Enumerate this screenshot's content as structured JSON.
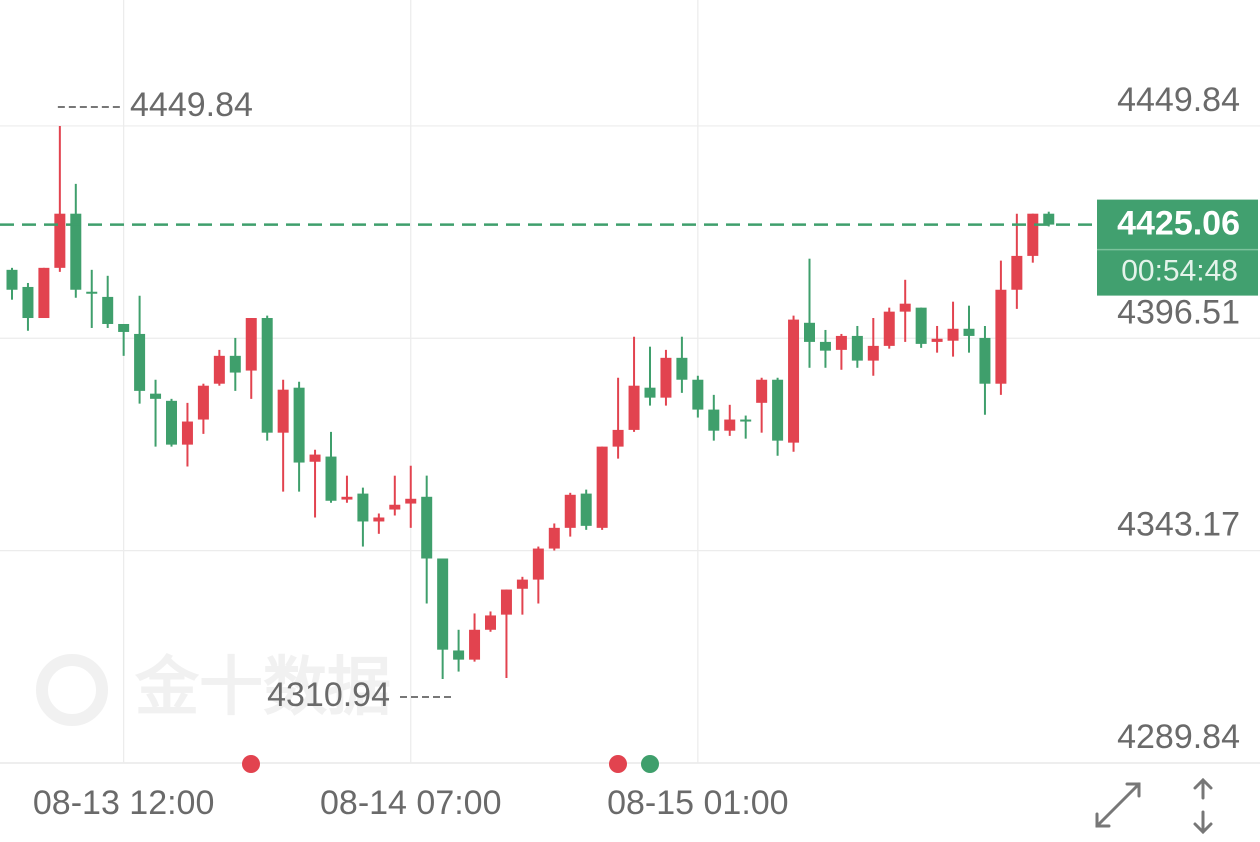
{
  "chart_data": {
    "type": "candlestick",
    "watermark": "金十数据",
    "categories": [
      null,
      null,
      null,
      null,
      null,
      null,
      null,
      "08-13 12:00",
      null,
      null,
      null,
      null,
      null,
      null,
      null,
      null,
      null,
      null,
      null,
      null,
      null,
      null,
      null,
      null,
      null,
      "08-14 07:00",
      null,
      null,
      null,
      null,
      null,
      null,
      null,
      null,
      null,
      null,
      null,
      null,
      null,
      null,
      null,
      null,
      null,
      "08-15 01:00",
      null,
      null,
      null,
      null,
      null,
      null,
      null,
      null,
      null,
      null,
      null,
      null,
      null,
      null,
      null,
      null,
      null,
      null,
      null,
      null,
      null,
      null
    ],
    "open": [
      4413.7,
      4409.4,
      4401.6,
      4414.2,
      4427.8,
      4408.2,
      4406.9,
      4400.1,
      4397.6,
      4382.6,
      4380.8,
      4369.8,
      4376.1,
      4385.1,
      4392.1,
      4388.4,
      4401.6,
      4372.8,
      4384.1,
      4365.5,
      4366.8,
      4356.0,
      4357.5,
      4350.5,
      4353.5,
      4355.0,
      4356.7,
      4341.2,
      4318.1,
      4315.8,
      4323.3,
      4327.1,
      4333.6,
      4335.9,
      4343.7,
      4348.9,
      4357.5,
      4348.9,
      4369.3,
      4373.5,
      4384.1,
      4381.6,
      4391.6,
      4386.1,
      4378.6,
      4373.3,
      4376.1,
      4380.3,
      4386.1,
      4370.3,
      4400.4,
      4395.6,
      4393.6,
      4397.1,
      4390.9,
      4394.6,
      4403.2,
      4404.2,
      4395.6,
      4395.9,
      4398.9,
      4396.6,
      4385.1,
      4408.7,
      4417.2,
      4427.8
    ],
    "high": [
      4414.2,
      4410.4,
      4414.2,
      4449.84,
      4435.3,
      4413.7,
      4412.2,
      4400.1,
      4407.2,
      4386.1,
      4381.3,
      4380.3,
      4385.1,
      4393.6,
      4396.6,
      4401.6,
      4402.2,
      4386.1,
      4385.6,
      4368.5,
      4373.0,
      4362.0,
      4359.0,
      4352.5,
      4362.0,
      4364.5,
      4362.0,
      4341.2,
      4323.3,
      4327.4,
      4327.9,
      4333.4,
      4336.6,
      4344.2,
      4350.0,
      4357.7,
      4358.5,
      4369.3,
      4386.6,
      4396.9,
      4394.4,
      4393.6,
      4396.9,
      4387.1,
      4382.3,
      4379.8,
      4377.1,
      4386.6,
      4386.6,
      4402.2,
      4416.5,
      4398.6,
      4397.6,
      4399.6,
      4401.6,
      4404.2,
      4411.2,
      4404.2,
      4399.6,
      4405.7,
      4404.7,
      4399.6,
      4416.0,
      4427.8,
      4427.8,
      4428.3
    ],
    "low": [
      4406.2,
      4398.4,
      4401.6,
      4413.2,
      4406.7,
      4399.1,
      4399.1,
      4392.1,
      4380.1,
      4369.3,
      4369.3,
      4364.3,
      4372.5,
      4384.6,
      4383.3,
      4381.3,
      4370.8,
      4358.0,
      4358.0,
      4351.5,
      4355.2,
      4355.2,
      4344.2,
      4347.4,
      4352.0,
      4348.9,
      4329.9,
      4310.94,
      4312.8,
      4315.3,
      4322.8,
      4311.2,
      4327.1,
      4329.9,
      4343.2,
      4346.7,
      4348.4,
      4348.4,
      4366.3,
      4373.0,
      4379.6,
      4379.6,
      4382.8,
      4376.6,
      4370.8,
      4372.0,
      4371.3,
      4372.8,
      4367.0,
      4368.0,
      4389.1,
      4389.1,
      4388.6,
      4389.1,
      4387.1,
      4393.9,
      4395.6,
      4394.1,
      4392.9,
      4391.9,
      4392.9,
      4377.3,
      4382.3,
      4403.9,
      4415.5,
      4424.6
    ],
    "close": [
      4408.7,
      4401.6,
      4414.2,
      4427.8,
      4408.7,
      4407.7,
      4400.1,
      4398.1,
      4383.3,
      4381.3,
      4369.8,
      4375.6,
      4384.6,
      4392.1,
      4387.9,
      4401.6,
      4372.8,
      4383.6,
      4365.3,
      4367.3,
      4355.7,
      4356.7,
      4350.5,
      4351.5,
      4354.7,
      4356.2,
      4341.2,
      4318.3,
      4315.8,
      4323.3,
      4326.9,
      4333.4,
      4335.9,
      4343.7,
      4348.9,
      4357.2,
      4349.4,
      4369.3,
      4373.5,
      4384.6,
      4381.6,
      4391.6,
      4386.1,
      4378.6,
      4373.3,
      4376.1,
      4375.6,
      4386.1,
      4370.8,
      4401.2,
      4395.6,
      4393.4,
      4397.1,
      4390.9,
      4394.6,
      4403.2,
      4405.2,
      4395.1,
      4396.4,
      4398.9,
      4397.1,
      4385.1,
      4408.7,
      4417.2,
      4427.8,
      4425.06
    ],
    "up_color": "#e2434f",
    "down_color": "#3f9f6c",
    "ylim": [
      4289.84,
      4481.47
    ],
    "yticks": [
      4449.84,
      4396.51,
      4343.17,
      4289.84
    ],
    "grid": true,
    "countdown": "00:54:48"
  }
}
